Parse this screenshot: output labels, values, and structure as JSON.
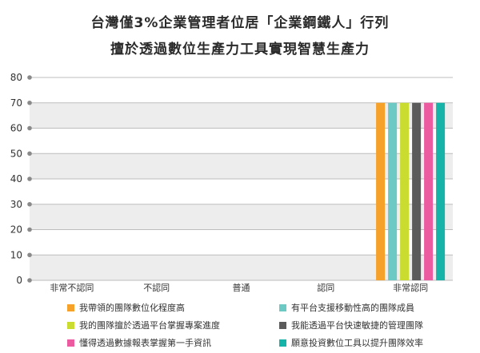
{
  "title": {
    "line1": "台灣僅3%企業管理者位居「企業鋼鐵人」行列",
    "line2": "擅於透過數位生產力工具實現智慧生產力"
  },
  "chart_data": {
    "type": "bar",
    "categories": [
      "非常不認同",
      "不認同",
      "普通",
      "認同",
      "非常認同"
    ],
    "ylim": [
      0,
      80
    ],
    "yticks": [
      0,
      10,
      20,
      30,
      40,
      50,
      60,
      70,
      80
    ],
    "grid": true,
    "legend_position": "bottom",
    "series": [
      {
        "name": "我帶領的團隊數位化程度高",
        "color": "#f5a12a",
        "values": [
          0,
          0,
          0,
          0,
          70
        ]
      },
      {
        "name": "有平台支援移動性高的團隊成員",
        "color": "#6cc9c4",
        "values": [
          0,
          0,
          0,
          0,
          70
        ]
      },
      {
        "name": "我的團隊擅於透過平台掌握專案進度",
        "color": "#c9dc2f",
        "values": [
          0,
          0,
          0,
          0,
          70
        ]
      },
      {
        "name": "我能透過平台快速敏捷的管理團隊",
        "color": "#5b5b5b",
        "values": [
          0,
          0,
          0,
          0,
          70
        ]
      },
      {
        "name": "懂得透過數據報表掌握第一手資訊",
        "color": "#ec5aa0",
        "values": [
          0,
          0,
          0,
          0,
          70
        ]
      },
      {
        "name": "願意投資數位工具以提升團隊效率",
        "color": "#15b3a8",
        "values": [
          0,
          0,
          0,
          0,
          70
        ]
      }
    ]
  }
}
